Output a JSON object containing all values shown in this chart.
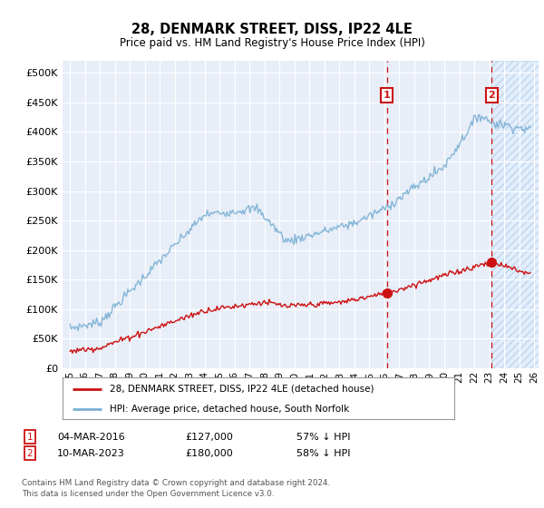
{
  "title": "28, DENMARK STREET, DISS, IP22 4LE",
  "subtitle": "Price paid vs. HM Land Registry's House Price Index (HPI)",
  "hpi_label": "HPI: Average price, detached house, South Norfolk",
  "price_label": "28, DENMARK STREET, DISS, IP22 4LE (detached house)",
  "footnote1": "Contains HM Land Registry data © Crown copyright and database right 2024.",
  "footnote2": "This data is licensed under the Open Government Licence v3.0.",
  "annotation1": {
    "label": "1",
    "date": "04-MAR-2016",
    "price": "£127,000",
    "pct": "57% ↓ HPI"
  },
  "annotation2": {
    "label": "2",
    "date": "10-MAR-2023",
    "price": "£180,000",
    "pct": "58% ↓ HPI"
  },
  "ylim": [
    0,
    520000
  ],
  "yticks": [
    0,
    50000,
    100000,
    150000,
    200000,
    250000,
    300000,
    350000,
    400000,
    450000,
    500000
  ],
  "background_color": "#ffffff",
  "plot_bg_color": "#e8eef8",
  "hpi_color": "#7ab0d4",
  "price_color": "#cc1111",
  "vline_color": "#cc1111",
  "annotation_box_color": "#cc1111",
  "x_start_year": 1995,
  "x_end_year": 2026,
  "sale1_year": 2016.17,
  "sale2_year": 2023.17,
  "sale1_price": 127000,
  "sale2_price": 180000
}
